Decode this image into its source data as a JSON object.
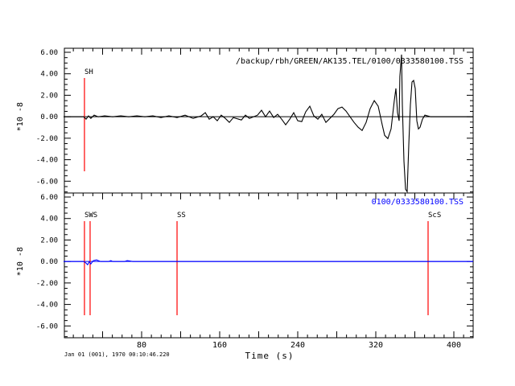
{
  "chart_data": {
    "type": "line",
    "xlabel": "Time (s)",
    "date_label": "Jan 01 (001), 1970 00:10:46.220",
    "xlim": [
      0,
      420
    ],
    "x_ticks": [
      80,
      160,
      240,
      320,
      400
    ],
    "colors": {
      "trace1": "#000000",
      "trace2": "#0000ff",
      "marker": "#ff0000",
      "axis": "#000000"
    },
    "panels": [
      {
        "title": "/backup/rbh/GREEN/AK135.TEL/0100/0333580100.TSS",
        "ylabel": "*10 -8",
        "ylim": [
          -7.1,
          6.375
        ],
        "y_ticks": [
          6,
          4,
          2,
          0,
          -2,
          -4,
          -6
        ],
        "y_tick_labels": [
          "6.00",
          "4.00",
          "2.00",
          "0.00",
          "-2.00",
          "-4.00",
          "-6.00"
        ],
        "markers": [
          {
            "label": "SH",
            "t": 21.4
          }
        ],
        "series": {
          "name": "trace",
          "t": [
            0,
            20.6,
            23.1,
            25.6,
            28.0,
            31.3,
            35.5,
            42.1,
            50.3,
            58.6,
            66.8,
            75.1,
            83.3,
            91.5,
            99.8,
            108.0,
            116.3,
            124.5,
            132.8,
            141.0,
            145.2,
            149.3,
            153.4,
            157.5,
            161.6,
            165.8,
            169.9,
            174.0,
            182.3,
            186.4,
            190.5,
            198.8,
            202.9,
            207.0,
            211.1,
            215.3,
            219.4,
            223.5,
            227.6,
            231.8,
            235.9,
            240.0,
            244.1,
            248.2,
            252.4,
            256.5,
            260.6,
            264.7,
            268.9,
            273.0,
            277.1,
            281.2,
            285.4,
            289.5,
            293.6,
            297.7,
            301.9,
            306.0,
            310.1,
            314.2,
            318.4,
            322.5,
            326.6,
            329.1,
            332.4,
            335.7,
            339.0,
            340.6,
            342.3,
            343.9,
            344.7,
            346.4,
            347.2,
            348.9,
            350.5,
            352.2,
            353.8,
            355.5,
            357.1,
            358.8,
            360.4,
            362.1,
            363.7,
            365.4,
            367.8,
            370.3,
            376.1,
            384.3,
            396.7,
            419.8
          ],
          "amp": [
            0,
            0,
            -0.23,
            0.08,
            -0.15,
            0.15,
            0,
            0.08,
            0,
            0.08,
            0,
            0.08,
            0,
            0.08,
            -0.08,
            0.08,
            -0.08,
            0.15,
            -0.15,
            0.08,
            0.38,
            -0.23,
            0,
            -0.38,
            0.15,
            -0.15,
            -0.53,
            -0.08,
            -0.3,
            0.15,
            -0.15,
            0.15,
            0.6,
            0,
            0.53,
            -0.08,
            0.23,
            -0.23,
            -0.75,
            -0.23,
            0.38,
            -0.38,
            -0.45,
            0.45,
            0.98,
            0.08,
            -0.23,
            0.23,
            -0.53,
            -0.15,
            0.23,
            0.75,
            0.9,
            0.53,
            0,
            -0.53,
            -0.98,
            -1.28,
            -0.53,
            0.75,
            1.5,
            0.98,
            -0.75,
            -1.73,
            -2.03,
            -1.13,
            1.5,
            2.63,
            0.38,
            -0.38,
            3.75,
            5.78,
            1.13,
            -4.13,
            -6.75,
            -6.98,
            -2.63,
            1.13,
            3.23,
            3.38,
            2.63,
            -0.38,
            -1.13,
            -0.98,
            -0.23,
            0.15,
            0,
            0,
            0,
            0
          ]
        }
      },
      {
        "title": "0100/0333580100.TSS",
        "ylabel": "*10 -8",
        "ylim": [
          -7.1,
          6.375
        ],
        "y_ticks": [
          6,
          4,
          2,
          0,
          -2,
          -4,
          -6
        ],
        "y_tick_labels": [
          "6.00",
          "4.00",
          "2.00",
          "0.00",
          "-2.00",
          "-4.00",
          "-6.00"
        ],
        "markers": [
          {
            "label": "SWS",
            "t": 21.4
          },
          {
            "label": "",
            "t": 27.2
          },
          {
            "label": "SS",
            "t": 116.3
          },
          {
            "label": "ScS",
            "t": 373.6
          }
        ],
        "series": {
          "name": "trace",
          "t": [
            0,
            20.6,
            23.1,
            24.7,
            26.4,
            28.0,
            30.5,
            33.8,
            37.9,
            46.2,
            48.6,
            50.3,
            62.7,
            65.2,
            71.0,
            419.8
          ],
          "amp": [
            0,
            0,
            -0.15,
            -0.3,
            0,
            -0.23,
            0.08,
            0.15,
            0,
            0,
            0.08,
            0,
            0,
            0.08,
            0,
            0
          ]
        }
      }
    ]
  }
}
